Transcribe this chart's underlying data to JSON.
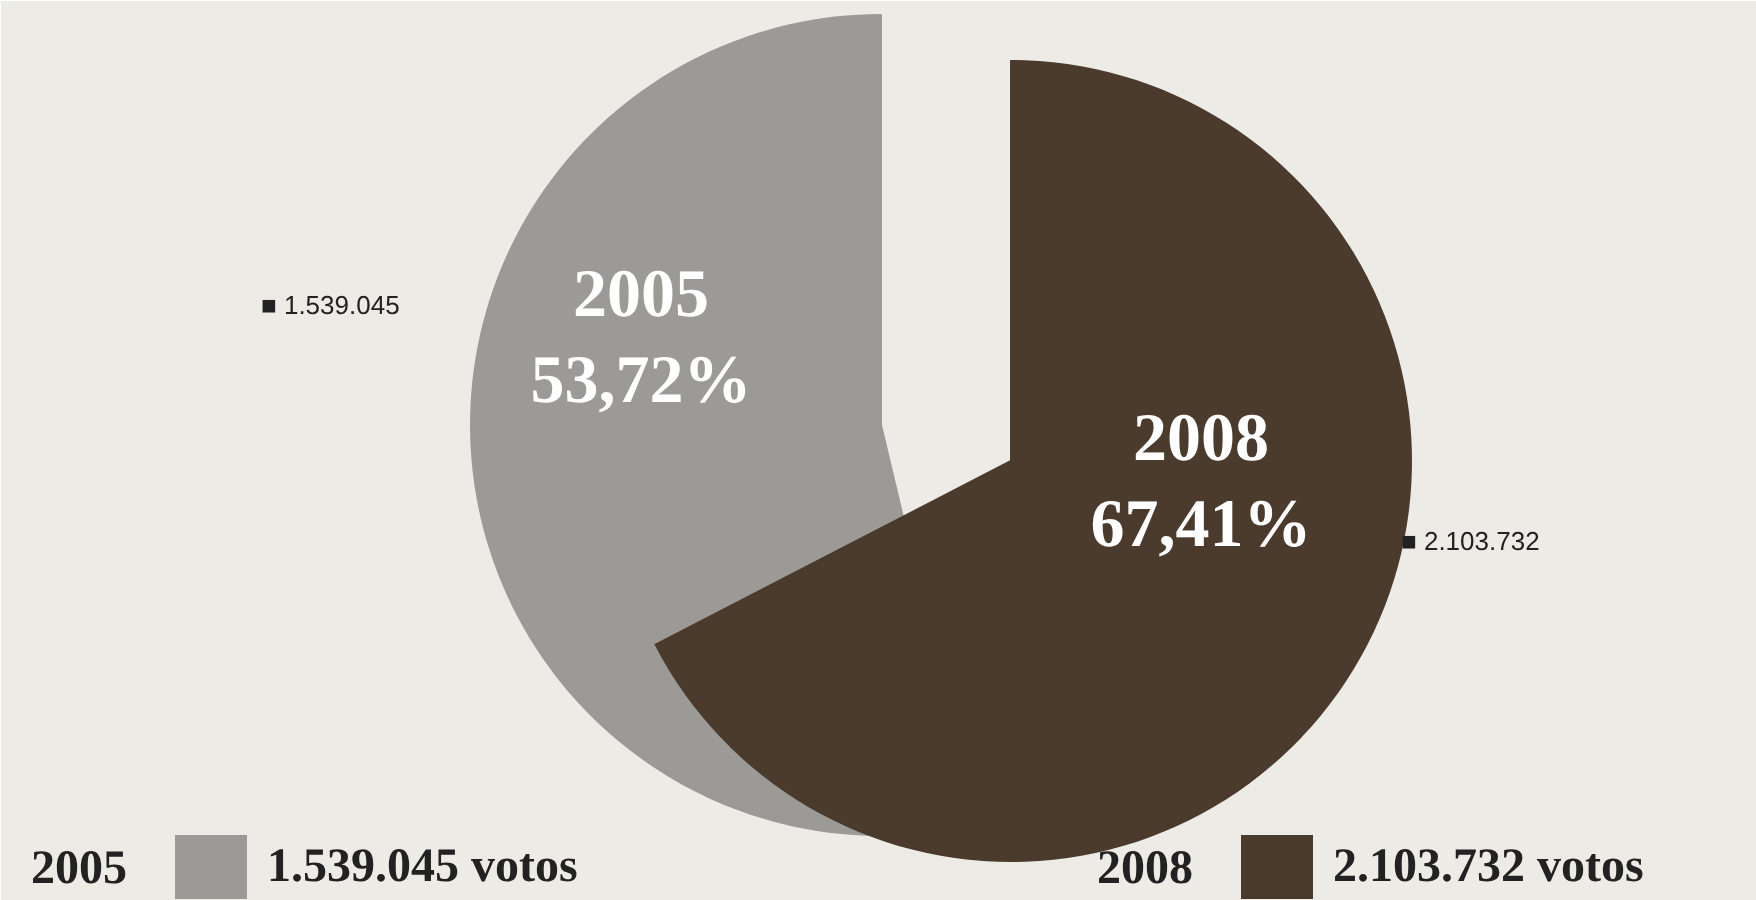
{
  "chart_data": [
    {
      "type": "pie",
      "categories": [
        "2005"
      ],
      "values": [
        53.72
      ],
      "value_labels": [
        "53,72%"
      ],
      "colors": [
        "#9b9a96"
      ],
      "legend": "bottom left",
      "annotations": [
        "■ 1.539.045",
        "1.539.045 votos"
      ]
    },
    {
      "type": "pie",
      "categories": [
        "2008"
      ],
      "values": [
        67.41
      ],
      "value_labels": [
        "67,41%"
      ],
      "colors": [
        "#4b3b2d"
      ],
      "legend": "bottom right",
      "annotations": [
        "■ 2.103.732",
        "2.103.732 votos"
      ]
    }
  ]
}
